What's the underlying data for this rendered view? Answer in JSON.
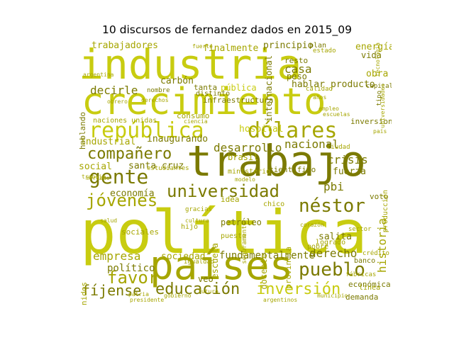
{
  "title": "10 discursos de fernandez dados en 2015_09",
  "colors": {
    "bright": "#c8cc10",
    "mid": "#a6a600",
    "dark": "#7b7a00"
  },
  "words": [
    {
      "t": "industria",
      "tone": "bright"
    },
    {
      "t": "crecimiento",
      "tone": "bright"
    },
    {
      "t": "trabajo",
      "tone": "dark"
    },
    {
      "t": "política",
      "tone": "bright"
    },
    {
      "t": "países",
      "tone": "mid"
    },
    {
      "t": "república",
      "tone": "bright"
    },
    {
      "t": "dólares",
      "tone": "mid"
    },
    {
      "t": "gente",
      "tone": "dark"
    },
    {
      "t": "universidad",
      "tone": "dark"
    },
    {
      "t": "jóvenes",
      "tone": "mid"
    },
    {
      "t": "néstor",
      "tone": "dark"
    },
    {
      "t": "compañero",
      "tone": "dark"
    },
    {
      "t": "pueblo",
      "tone": "dark"
    },
    {
      "t": "educación",
      "tone": "dark"
    },
    {
      "t": "inversión",
      "tone": "bright"
    },
    {
      "t": "favor",
      "tone": "mid"
    },
    {
      "t": "fíjense",
      "tone": "dark"
    },
    {
      "t": "empresa",
      "tone": "mid"
    },
    {
      "t": "trabajadores",
      "tone": "mid"
    },
    {
      "t": "decirle",
      "tone": "dark"
    },
    {
      "t": "casa",
      "tone": "dark"
    },
    {
      "t": "desarrollo",
      "tone": "dark"
    },
    {
      "t": "nacional",
      "tone": "dark"
    },
    {
      "t": "crisis",
      "tone": "dark"
    },
    {
      "t": "derecho",
      "tone": "dark"
    },
    {
      "t": "historia",
      "tone": "mid"
    },
    {
      "t": "fundamentalmente",
      "tone": "dark"
    },
    {
      "t": "sociedad",
      "tone": "mid"
    },
    {
      "t": "economía",
      "tone": "dark"
    },
    {
      "t": "social",
      "tone": "mid"
    },
    {
      "t": "político",
      "tone": "dark"
    },
    {
      "t": "pbi",
      "tone": "dark"
    },
    {
      "t": "fuerza",
      "tone": "dark"
    },
    {
      "t": "santa cruz",
      "tone": "dark"
    },
    {
      "t": "hospital",
      "tone": "bright"
    },
    {
      "t": "industrial",
      "tone": "mid"
    },
    {
      "t": "inaugurando",
      "tone": "dark"
    },
    {
      "t": "internacional",
      "tone": "dark"
    },
    {
      "t": "finalmente",
      "tone": "mid"
    },
    {
      "t": "principio",
      "tone": "dark"
    },
    {
      "t": "resto",
      "tone": "dark"
    },
    {
      "t": "peso",
      "tone": "dark"
    },
    {
      "t": "hablar",
      "tone": "dark"
    },
    {
      "t": "producto",
      "tone": "dark"
    },
    {
      "t": "energía",
      "tone": "mid"
    },
    {
      "t": "vida",
      "tone": "dark"
    },
    {
      "t": "obra",
      "tone": "mid"
    },
    {
      "t": "carbón",
      "tone": "dark"
    },
    {
      "t": "pública",
      "tone": "bright"
    },
    {
      "t": "infraestructura",
      "tone": "dark"
    },
    {
      "t": "petróleo",
      "tone": "dark"
    },
    {
      "t": "escuela",
      "tone": "mid"
    },
    {
      "t": "docente",
      "tone": "mid"
    },
    {
      "t": "salita",
      "tone": "dark"
    },
    {
      "t": "hablando",
      "tone": "dark"
    },
    {
      "t": "estados unidos",
      "tone": "mid"
    },
    {
      "t": "sociales",
      "tone": "mid"
    },
    {
      "t": "brasil",
      "tone": "mid"
    },
    {
      "t": "científico",
      "tone": "dark"
    },
    {
      "t": "voto",
      "tone": "dark"
    },
    {
      "t": "económica",
      "tone": "dark"
    },
    {
      "t": "demanda",
      "tone": "dark"
    },
    {
      "t": "banco",
      "tone": "dark"
    },
    {
      "t": "inversiones",
      "tone": "dark"
    },
    {
      "t": "consumo",
      "tone": "mid"
    },
    {
      "t": "idea",
      "tone": "mid"
    },
    {
      "t": "chico",
      "tone": "mid"
    },
    {
      "t": "puesto",
      "tone": "mid"
    },
    {
      "t": "provincia",
      "tone": "mid"
    },
    {
      "t": "pobre",
      "tone": "mid"
    },
    {
      "t": "logrado",
      "tone": "mid"
    },
    {
      "t": "producción",
      "tone": "mid"
    },
    {
      "t": "ministerio",
      "tone": "mid"
    },
    {
      "t": "estado",
      "tone": "mid"
    },
    {
      "t": "naciones unidas",
      "tone": "mid"
    },
    {
      "t": "tanta",
      "tone": "dark"
    },
    {
      "t": "distinto",
      "tone": "dark"
    },
    {
      "t": "veo",
      "tone": "dark"
    },
    {
      "t": "línea",
      "tone": "mid"
    },
    {
      "t": "capital",
      "tone": "dark"
    },
    {
      "t": "plan",
      "tone": "dark"
    },
    {
      "t": "seguramente",
      "tone": "mid"
    },
    {
      "t": "igualdad",
      "tone": "mid"
    },
    {
      "t": "hijo",
      "tone": "mid"
    },
    {
      "t": "nombre",
      "tone": "dark"
    },
    {
      "t": "tipo",
      "tone": "dark"
    },
    {
      "t": "sector",
      "tone": "mid"
    },
    {
      "t": "ciudad",
      "tone": "mid"
    },
    {
      "t": "gracias",
      "tone": "mid"
    },
    {
      "t": "fuerte",
      "tone": "mid"
    },
    {
      "t": "calidad",
      "tone": "mid"
    },
    {
      "t": "crédito",
      "tone": "mid"
    },
    {
      "t": "universidades",
      "tone": "mid"
    },
    {
      "t": "mercado",
      "tone": "mid"
    },
    {
      "t": "fábricas",
      "tone": "mid"
    },
    {
      "t": "tecnología",
      "tone": "mid"
    },
    {
      "t": "corazón",
      "tone": "mid"
    },
    {
      "t": "trabajo",
      "tone": "mid"
    },
    {
      "t": "derechos",
      "tone": "mid"
    },
    {
      "t": "estudiantes",
      "tone": "mid"
    },
    {
      "t": "presidente",
      "tone": "mid"
    },
    {
      "t": "gobierno",
      "tone": "mid"
    },
    {
      "t": "ciencia",
      "tone": "mid"
    },
    {
      "t": "escuelas",
      "tone": "mid"
    },
    {
      "t": "años",
      "tone": "mid"
    },
    {
      "t": "argentina",
      "tone": "mid"
    },
    {
      "t": "argentinos",
      "tone": "mid"
    },
    {
      "t": "municipio",
      "tone": "mid"
    },
    {
      "t": "cultura",
      "tone": "mid"
    },
    {
      "t": "salud",
      "tone": "mid"
    },
    {
      "t": "patria",
      "tone": "mid"
    },
    {
      "t": "futuro",
      "tone": "mid"
    },
    {
      "t": "modelo",
      "tone": "mid"
    },
    {
      "t": "obrero",
      "tone": "mid"
    },
    {
      "t": "empleo",
      "tone": "mid"
    },
    {
      "t": "país",
      "tone": "mid"
    }
  ]
}
